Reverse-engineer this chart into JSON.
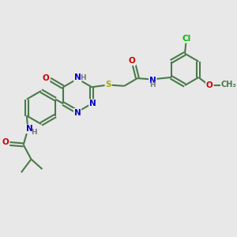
{
  "bg_color": "#e8e8e8",
  "bond_color": "#4a7a4a",
  "bond_width": 1.5,
  "dbo": 0.07,
  "atom_colors": {
    "N": "#0000cc",
    "O": "#cc0000",
    "S": "#aaaa00",
    "Cl": "#00bb00",
    "C": "#4a7a4a",
    "H": "#777777"
  },
  "font_size": 7.5,
  "fig_size": [
    3.0,
    3.0
  ],
  "dpi": 100
}
